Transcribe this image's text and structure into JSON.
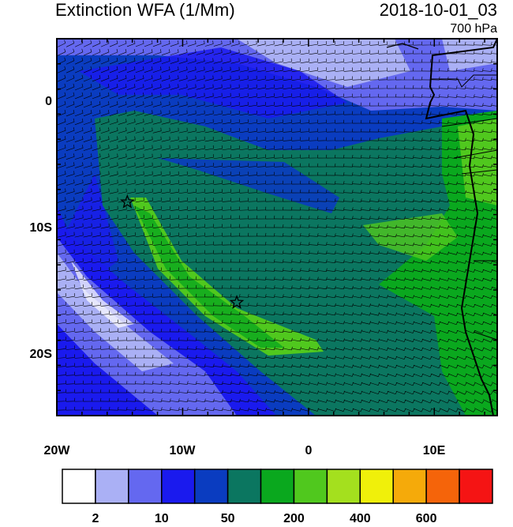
{
  "header": {
    "title": "Extinction WFA (1/Mm)",
    "datetime": "2018-10-01_03",
    "level": "700 hPa"
  },
  "axes": {
    "y_ticks": [
      {
        "label": "0",
        "lat": 0
      },
      {
        "label": "10S",
        "lat": -10
      },
      {
        "label": "20S",
        "lat": -20
      }
    ],
    "x_ticks": [
      {
        "label": "20W",
        "lon": -20
      },
      {
        "label": "10W",
        "lon": -10
      },
      {
        "label": "0",
        "lon": 0
      },
      {
        "label": "10E",
        "lon": 10
      }
    ],
    "lon_range": [
      -20,
      15
    ],
    "lat_range": [
      -25,
      5
    ]
  },
  "markers": [
    {
      "name": "star-1",
      "lon": -14.4,
      "lat": -8.0
    },
    {
      "name": "star-2",
      "lon": -5.7,
      "lat": -16.0
    }
  ],
  "colorbar": {
    "colors": [
      "#ffffff",
      "#aab0f5",
      "#6468f0",
      "#1a1aee",
      "#0a3cc0",
      "#0b7660",
      "#0aa81e",
      "#50c81e",
      "#a4e01e",
      "#f0f00a",
      "#f5aa0a",
      "#f5640a",
      "#f51414"
    ],
    "labels": [
      {
        "text": "2",
        "boundary": 1
      },
      {
        "text": "10",
        "boundary": 3
      },
      {
        "text": "50",
        "boundary": 5
      },
      {
        "text": "200",
        "boundary": 7
      },
      {
        "text": "400",
        "boundary": 9
      },
      {
        "text": "600",
        "boundary": 11
      }
    ]
  }
}
